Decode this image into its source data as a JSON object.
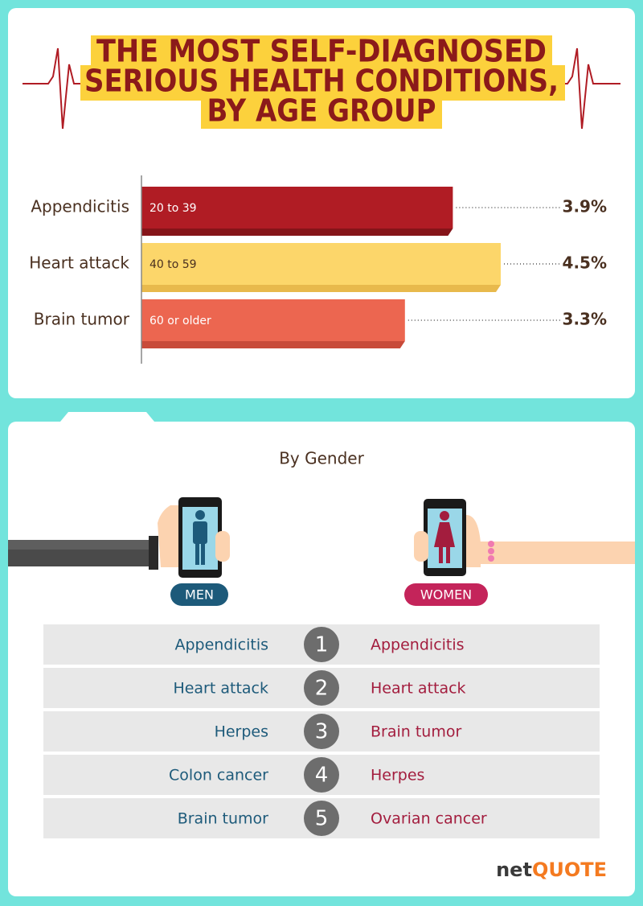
{
  "chart_data": {
    "type": "bar",
    "orientation": "horizontal",
    "title": [
      "THE MOST SELF-DIAGNOSED",
      "SERIOUS HEALTH CONDITIONS,",
      "BY AGE GROUP"
    ],
    "categories": [
      "Appendicitis",
      "Heart attack",
      "Brain tumor"
    ],
    "values": [
      3.9,
      4.5,
      3.3
    ],
    "value_labels": [
      "3.9%",
      "4.5%",
      "3.3%"
    ],
    "bar_labels": [
      "20 to 39",
      "40 to 59",
      "60 or older"
    ],
    "colors": [
      "#b01c24",
      "#fcd66a",
      "#ec6650"
    ],
    "xlim": [
      0,
      4.5
    ]
  },
  "gender": {
    "title": "By Gender",
    "men_label": "MEN",
    "women_label": "WOMEN",
    "ranks": [
      1,
      2,
      3,
      4,
      5
    ],
    "men": [
      "Appendicitis",
      "Heart attack",
      "Herpes",
      "Colon cancer",
      "Brain tumor"
    ],
    "women": [
      "Appendicitis",
      "Heart attack",
      "Brain tumor",
      "Herpes",
      "Ovarian cancer"
    ]
  },
  "logo": {
    "prefix": "net",
    "suffix": "QUOTE"
  }
}
